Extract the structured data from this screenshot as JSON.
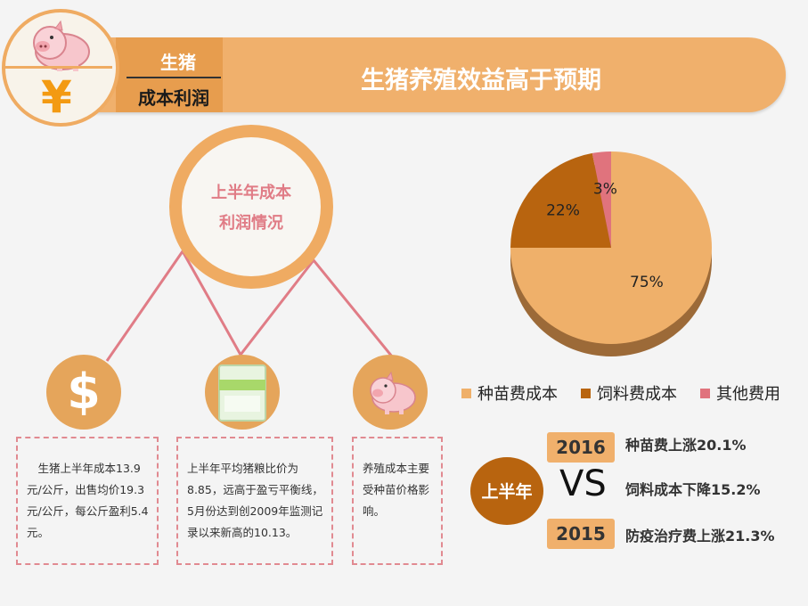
{
  "header": {
    "tag_line1": "生猪",
    "tag_line2": "成本利润",
    "title": "生猪养殖效益高于预期",
    "currency_glyph": "¥"
  },
  "center": {
    "line1": "上半年成本",
    "line2": "利润情况"
  },
  "icons": [
    "dollar-icon",
    "feed-bag-icon",
    "pig-icon"
  ],
  "boxes": [
    {
      "text": "　生猪上半年成本13.9元/公斤，出售均价19.3元/公斤，每公斤盈利5.4元。"
    },
    {
      "text": "上半年平均猪粮比价为8.85，远高于盈亏平衡线，5月份达到创2009年监测记录以来新高的10.13。"
    },
    {
      "text": "养殖成本主要受种苗价格影响。"
    }
  ],
  "chart_data": {
    "type": "pie",
    "slices": [
      {
        "label": "种苗费成本",
        "value": 75,
        "display": "75%",
        "color": "#efb06a"
      },
      {
        "label": "饲料费成本",
        "value": 22,
        "display": "22%",
        "color": "#b8640f"
      },
      {
        "label": "其他费用",
        "value": 3,
        "display": "3%",
        "color": "#e0737d"
      }
    ],
    "legend_position": "bottom"
  },
  "comparison": {
    "period": "上半年",
    "vs": "VS",
    "year_top": "2016",
    "year_bottom": "2015",
    "stat1": "种苗费上涨20.1%",
    "stat2": "饲料成本下降15.2%",
    "stat3": "防疫治疗费上涨21.3%"
  }
}
